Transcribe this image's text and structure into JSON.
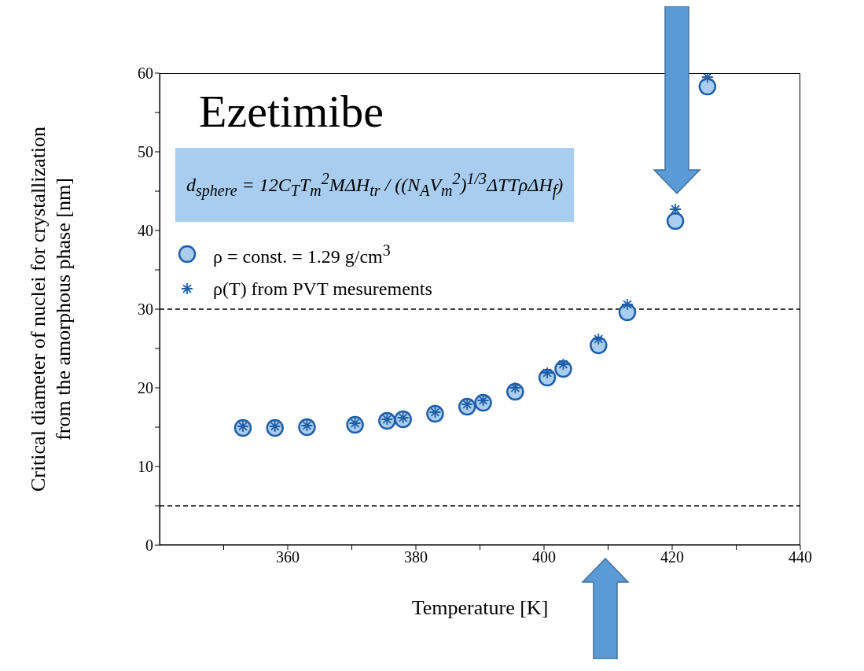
{
  "chart_data": {
    "type": "scatter",
    "title": "Ezetimibe",
    "xlabel": "Temperature [K]",
    "ylabel": "Critical diameter of nuclei for crystallization\nfrom the amorphous phase [nm]",
    "annotations": [
      "d$_{sphere}$ = 12C$_{T}$T$_{m}$$^{2}$MΔH$_{tr}$ / ((N$_{A}$V$_{m}$$^{2}$)$^{1/3}$ΔTTρΔH$_{f}$)"
    ],
    "xlim": [
      340,
      440
    ],
    "xticks": [
      {
        "value": 350,
        "label": null
      },
      360,
      {
        "value": 370,
        "label": null
      },
      380,
      {
        "value": 390,
        "label": null
      },
      400,
      {
        "value": 410,
        "label": null
      },
      420,
      {
        "value": 430,
        "label": null
      },
      440
    ],
    "ylim": [
      0,
      60
    ],
    "yticks": [
      0,
      {
        "value": 5,
        "label": null
      },
      10,
      {
        "value": 15,
        "label": null
      },
      20,
      {
        "value": 25,
        "label": null
      },
      30,
      {
        "value": 35,
        "label": null
      },
      40,
      {
        "value": 45,
        "label": null
      },
      50,
      {
        "value": 55,
        "label": null
      },
      60
    ],
    "x": [
      353,
      358,
      363,
      370.5,
      375.5,
      378,
      383,
      388,
      390.5,
      395.5,
      400.5,
      403,
      408.5,
      413,
      420.5,
      425.5
    ],
    "series": [
      {
        "name": "ρ = const. = 1.29 g/cm$^{3}$",
        "color": "#1f5ea8",
        "marker": "circle",
        "values": [
          14.9,
          14.9,
          15.0,
          15.3,
          15.8,
          16.0,
          16.7,
          17.6,
          18.1,
          19.5,
          21.3,
          22.4,
          25.4,
          29.6,
          41.2,
          58.3
        ]
      },
      {
        "name": "ρ(T) from PVT mesurements",
        "color": "#1f5ea8",
        "marker": "cross",
        "values": [
          15.1,
          15.1,
          15.2,
          15.5,
          16.0,
          16.2,
          16.9,
          17.9,
          18.4,
          20.0,
          21.9,
          23.0,
          26.2,
          30.6,
          42.7,
          59.5
        ]
      }
    ],
    "ref_lines": [
      {
        "axis": "y",
        "value": 30,
        "color": "#000000",
        "line_style": "dashed"
      },
      {
        "axis": "y",
        "value": 5,
        "color": "#000000",
        "line_style": "dashed"
      }
    ],
    "legend": "top left",
    "grid": false
  }
}
